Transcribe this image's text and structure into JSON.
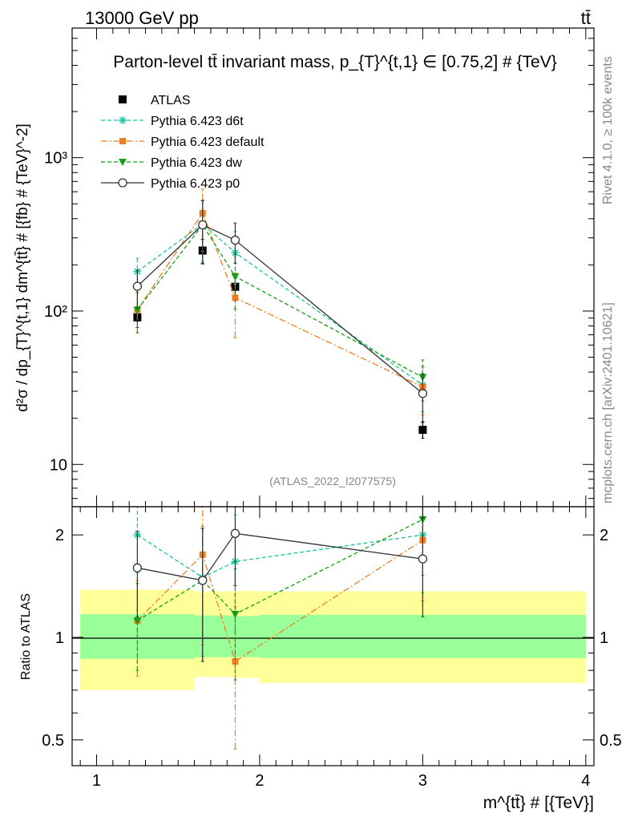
{
  "header": {
    "energy_label": "13000 GeV pp",
    "process_label": "tt̄"
  },
  "side": {
    "rivet_label": "Rivet 4.1.0, ≥ 100k events",
    "source_label": "mcplots.cern.ch [arXiv:2401.10621]"
  },
  "chart_data": [
    {
      "type": "line",
      "panel": "main",
      "title": "Parton-level tt̄ invariant mass, p_{T}^{t,1} ∈ [0.75,2] # {TeV}",
      "ylabel": "d²σ / dp_{T}^{t,1} dm^{tt̄} # [{fb} # {TeV}^-2]",
      "watermark": "(ATLAS_2022_I2077575)",
      "yscale": "log",
      "xlim": [
        0.85,
        4.05
      ],
      "ylim": [
        5.3,
        7000
      ],
      "yticks": [
        {
          "v": 10,
          "label": "10"
        },
        {
          "v": 100,
          "label": "10²"
        },
        {
          "v": 1000,
          "label": "10³"
        }
      ],
      "legend_position": "top-left",
      "series": [
        {
          "name": "ATLAS",
          "color": "#000000",
          "marker": "square",
          "line": "none",
          "x": [
            1.25,
            1.65,
            1.85,
            3.0
          ],
          "y": [
            91,
            248,
            144,
            16.8
          ],
          "err": [
            [
              13,
              13
            ],
            [
              45,
              45
            ],
            [
              20,
              20
            ],
            [
              2,
              2
            ]
          ]
        },
        {
          "name": "Pythia 6.423 d6t",
          "color": "#1bc4a0",
          "marker": "star",
          "line": "dashed",
          "x": [
            1.25,
            1.65,
            1.85,
            3.0
          ],
          "y": [
            181,
            370,
            240,
            33
          ],
          "err": [
            [
              40,
              40
            ],
            [
              160,
              160
            ],
            [
              90,
              90
            ],
            [
              11,
              11
            ]
          ]
        },
        {
          "name": "Pythia 6.423 default",
          "color": "#f07f22",
          "marker": "square-small",
          "line": "dashdot",
          "x": [
            1.25,
            1.65,
            1.85,
            3.0
          ],
          "y": [
            102,
            435,
            122,
            32
          ],
          "err": [
            [
              30,
              30
            ],
            [
              190,
              190
            ],
            [
              55,
              55
            ],
            [
              11,
              11
            ]
          ]
        },
        {
          "name": "Pythia 6.423 dw",
          "color": "#17a017",
          "marker": "triangle-down",
          "line": "dashed",
          "x": [
            1.25,
            1.65,
            1.85,
            3.0
          ],
          "y": [
            102,
            365,
            168,
            37
          ],
          "err": [
            [
              30,
              30
            ],
            [
              160,
              160
            ],
            [
              65,
              65
            ],
            [
              11,
              11
            ]
          ]
        },
        {
          "name": "Pythia 6.423 p0",
          "color": "#333333",
          "marker": "circle-open",
          "line": "solid",
          "x": [
            1.25,
            1.65,
            1.85,
            3.0
          ],
          "y": [
            145,
            365,
            290,
            29
          ],
          "err": [
            [
              40,
              40
            ],
            [
              160,
              160
            ],
            [
              85,
              85
            ],
            [
              10,
              10
            ]
          ]
        }
      ]
    },
    {
      "type": "line",
      "panel": "ratio",
      "ylabel": "Ratio to ATLAS",
      "xlabel": "m^{tt̄} # [{TeV}]",
      "yscale": "log",
      "xlim": [
        0.85,
        4.05
      ],
      "ylim": [
        0.42,
        2.42
      ],
      "yticks": [
        {
          "v": 0.5,
          "label": "0.5"
        },
        {
          "v": 1,
          "label": "1"
        },
        {
          "v": 2,
          "label": "2"
        }
      ],
      "xticks": [
        {
          "v": 1,
          "label": "1"
        },
        {
          "v": 2,
          "label": "2"
        },
        {
          "v": 3,
          "label": "3"
        },
        {
          "v": 4,
          "label": "4"
        }
      ],
      "bands": [
        {
          "x0": 0.9,
          "x1": 1.6,
          "yellow": [
            0.7,
            1.38
          ],
          "green": [
            0.865,
            1.17
          ]
        },
        {
          "x0": 1.6,
          "x1": 1.85,
          "yellow": [
            0.765,
            1.365
          ],
          "green": [
            0.875,
            1.16
          ]
        },
        {
          "x0": 1.85,
          "x1": 2.0,
          "yellow": [
            0.76,
            1.37
          ],
          "green": [
            0.875,
            1.155
          ]
        },
        {
          "x0": 2.0,
          "x1": 4.0,
          "yellow": [
            0.735,
            1.365
          ],
          "green": [
            0.87,
            1.165
          ]
        }
      ],
      "series": [
        {
          "name": "Pythia 6.423 d6t",
          "color": "#1bc4a0",
          "marker": "star",
          "line": "dashed",
          "x": [
            1.25,
            1.65,
            1.85,
            3.0
          ],
          "y": [
            2.0,
            1.5,
            1.67,
            2.0
          ],
          "err": [
            [
              0.45,
              0.45
            ],
            [
              0.62,
              0.62
            ],
            [
              0.62,
              0.62
            ],
            [
              0.65,
              0.65
            ]
          ]
        },
        {
          "name": "Pythia 6.423 default",
          "color": "#f07f22",
          "marker": "square-small",
          "line": "dashdot",
          "x": [
            1.25,
            1.65,
            1.85,
            3.0
          ],
          "y": [
            1.12,
            1.75,
            0.85,
            1.93
          ],
          "err": [
            [
              0.35,
              0.35
            ],
            [
              0.8,
              0.8
            ],
            [
              0.38,
              0.38
            ],
            [
              0.65,
              0.65
            ]
          ]
        },
        {
          "name": "Pythia 6.423 dw",
          "color": "#17a017",
          "marker": "triangle-down",
          "line": "dashed",
          "x": [
            1.25,
            1.65,
            1.85,
            3.0
          ],
          "y": [
            1.12,
            1.47,
            1.17,
            2.22
          ],
          "err": [
            [
              0.32,
              0.32
            ],
            [
              0.62,
              0.62
            ],
            [
              0.42,
              0.42
            ],
            [
              0.7,
              0.7
            ]
          ]
        },
        {
          "name": "Pythia 6.423 p0",
          "color": "#333333",
          "marker": "circle-open",
          "line": "solid",
          "x": [
            1.25,
            1.65,
            1.85,
            3.0
          ],
          "y": [
            1.6,
            1.47,
            2.02,
            1.7
          ],
          "err": [
            [
              0.45,
              0.45
            ],
            [
              0.62,
              0.62
            ],
            [
              0.6,
              0.6
            ],
            [
              0.55,
              0.55
            ]
          ]
        }
      ]
    }
  ]
}
